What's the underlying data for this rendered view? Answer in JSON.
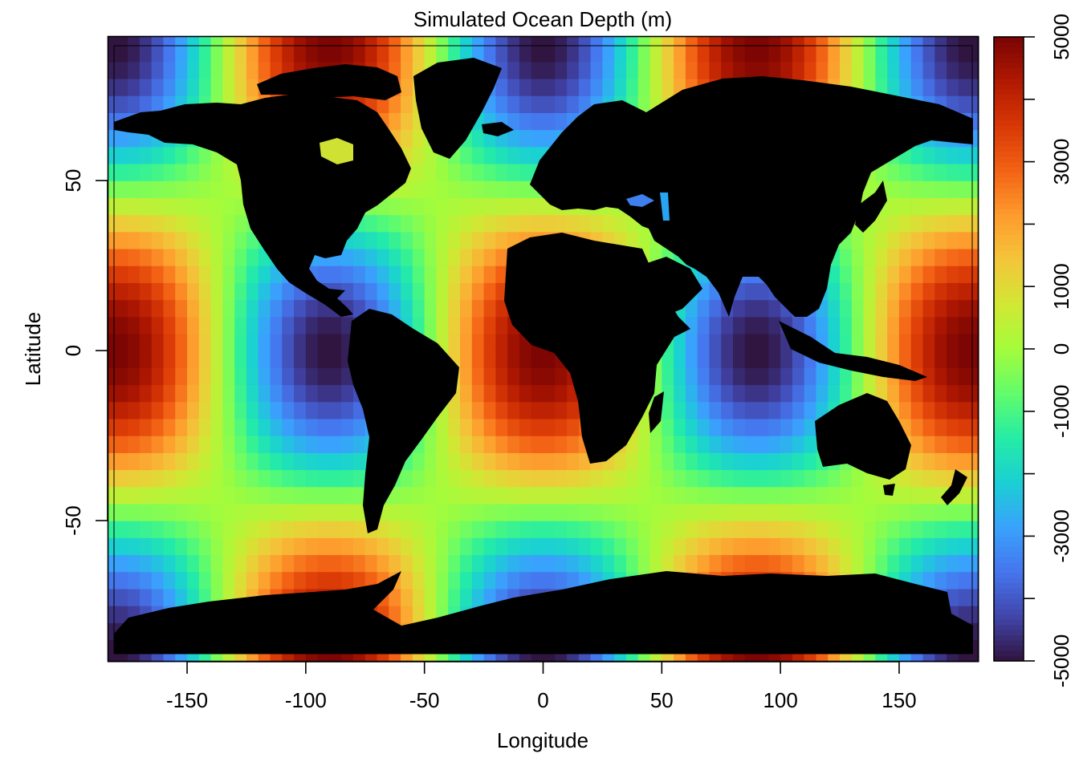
{
  "chart_data": {
    "type": "heatmap",
    "title": "Simulated Ocean Depth (m)",
    "xlabel": "Longitude",
    "ylabel": "Latitude",
    "xlim": [
      -180,
      180
    ],
    "ylim": [
      -90,
      90
    ],
    "x_ticks": [
      -150,
      -100,
      -50,
      0,
      50,
      100,
      150
    ],
    "y_ticks": [
      -50,
      0,
      50
    ],
    "grid_cells": {
      "lon_step": 5,
      "lat_step": 5
    },
    "value_model": "depth = 5000 * cos(2*lon) * cos(2*lat) (approx., lon/lat in degrees)",
    "value_range": [
      -5000,
      5000
    ],
    "colorscale": {
      "name": "turbo",
      "stops": [
        "#30123b",
        "#4145ab",
        "#4675ed",
        "#39a2fc",
        "#1bcfd4",
        "#24eca6",
        "#61fc6c",
        "#a4fc3b",
        "#d1e834",
        "#f3c63a",
        "#fe9b2d",
        "#f36315",
        "#d93806",
        "#b11901",
        "#7a0403"
      ]
    },
    "colorbar": {
      "ticks": [
        -5000,
        -4000,
        -3000,
        -2000,
        -1000,
        0,
        1000,
        2000,
        3000,
        4000,
        5000
      ],
      "labels": [
        "-5000",
        "",
        "-3000",
        "",
        "-1000",
        "0",
        "1000",
        "",
        "3000",
        "",
        "5000"
      ]
    },
    "land_color": "#000000",
    "overlay": "world coastlines (land masked in black)"
  }
}
